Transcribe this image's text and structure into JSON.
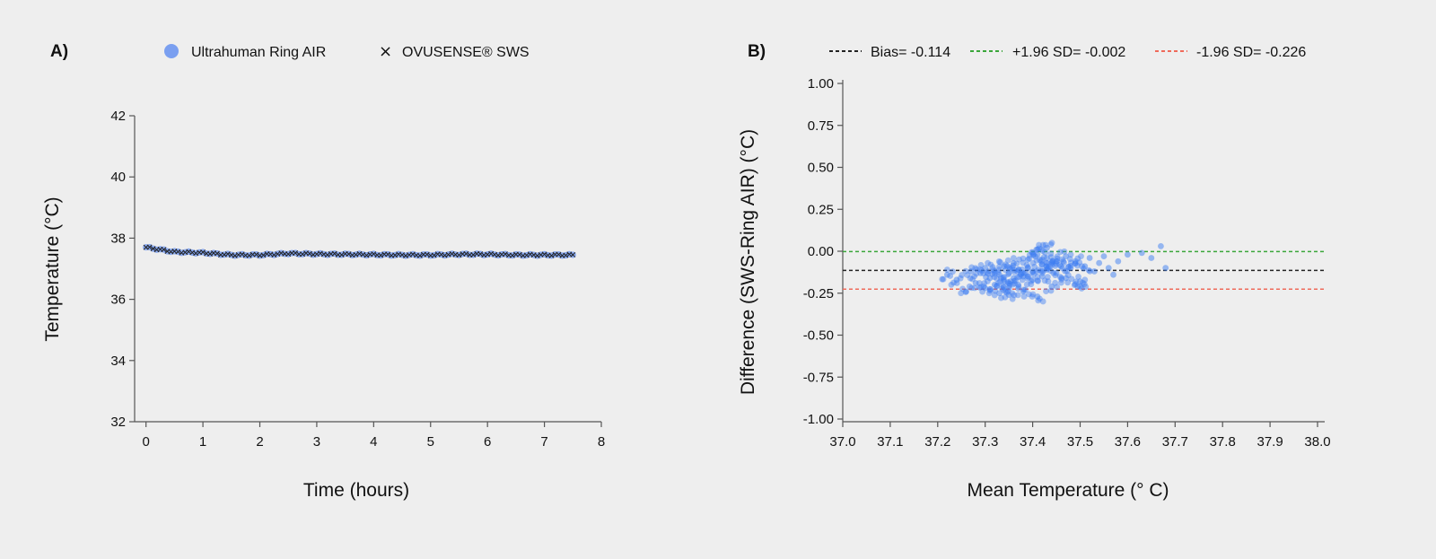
{
  "chart_data": [
    {
      "panel_label": "A)",
      "type": "line",
      "xlabel": "Time (hours)",
      "ylabel": "Temperature (°C)",
      "xlim": [
        -0.2,
        8
      ],
      "ylim": [
        32,
        42
      ],
      "xticks": [
        "0",
        "1",
        "2",
        "3",
        "4",
        "5",
        "6",
        "7",
        "8"
      ],
      "yticks": [
        "32",
        "34",
        "36",
        "38",
        "40",
        "42"
      ],
      "legend_position": "top",
      "series": [
        {
          "name": "Ultrahuman Ring AIR",
          "marker": "circle",
          "color": "#7a9ff0",
          "x": [
            0,
            0.5,
            1,
            1.5,
            2,
            2.5,
            3,
            3.5,
            4,
            4.5,
            5,
            5.5,
            6,
            6.5,
            7,
            7.5
          ],
          "y": [
            37.7,
            37.55,
            37.52,
            37.45,
            37.45,
            37.5,
            37.48,
            37.47,
            37.46,
            37.45,
            37.45,
            37.47,
            37.47,
            37.45,
            37.45,
            37.45
          ]
        },
        {
          "name": "OVUSENSE® SWS",
          "marker": "x",
          "color": "#222222",
          "x": [
            0,
            0.5,
            1,
            1.5,
            2,
            2.5,
            3,
            3.5,
            4,
            4.5,
            5,
            5.5,
            6,
            6.5,
            7,
            7.5
          ],
          "y": [
            37.7,
            37.55,
            37.52,
            37.45,
            37.45,
            37.5,
            37.48,
            37.47,
            37.46,
            37.45,
            37.45,
            37.47,
            37.47,
            37.45,
            37.45,
            37.45
          ]
        }
      ]
    },
    {
      "panel_label": "B)",
      "type": "scatter",
      "xlabel": "Mean Temperature (° C)",
      "ylabel": "Difference (SWS-Ring AIR)  (°C)",
      "xlim": [
        37.0,
        38.0
      ],
      "ylim": [
        -1.0,
        1.0
      ],
      "xticks": [
        "37.0",
        "37.1",
        "37.2",
        "37.3",
        "37.4",
        "37.5",
        "37.6",
        "37.7",
        "37.8",
        "37.9",
        "38.0"
      ],
      "yticks": [
        "-1.00",
        "-0.75",
        "-0.50",
        "-0.25",
        "0.00",
        "0.25",
        "0.50",
        "0.75",
        "1.00"
      ],
      "legend_position": "top",
      "point_color": "#3b7df2",
      "lines": [
        {
          "label": "Bias= -0.114",
          "y": -0.114,
          "color": "#222222"
        },
        {
          "label": "+1.96 SD= -0.002",
          "y": -0.002,
          "color": "#3aa63a"
        },
        {
          "label": "-1.96 SD= -0.226",
          "y": -0.226,
          "color": "#ef6a5a"
        }
      ],
      "points": [
        [
          37.22,
          -0.14
        ],
        [
          37.24,
          -0.17
        ],
        [
          37.26,
          -0.24
        ],
        [
          37.27,
          -0.12
        ],
        [
          37.28,
          -0.19
        ],
        [
          37.29,
          -0.13
        ],
        [
          37.3,
          -0.22
        ],
        [
          37.3,
          -0.1
        ],
        [
          37.31,
          -0.16
        ],
        [
          37.32,
          -0.2
        ],
        [
          37.32,
          -0.12
        ],
        [
          37.33,
          -0.25
        ],
        [
          37.33,
          -0.14
        ],
        [
          37.34,
          -0.09
        ],
        [
          37.34,
          -0.18
        ],
        [
          37.35,
          -0.22
        ],
        [
          37.35,
          -0.13
        ],
        [
          37.36,
          -0.16
        ],
        [
          37.36,
          -0.07
        ],
        [
          37.37,
          -0.2
        ],
        [
          37.37,
          -0.11
        ],
        [
          37.38,
          -0.15
        ],
        [
          37.38,
          -0.24
        ],
        [
          37.39,
          -0.1
        ],
        [
          37.39,
          -0.05
        ],
        [
          37.4,
          -0.17
        ],
        [
          37.4,
          -0.12
        ],
        [
          37.41,
          -0.02
        ],
        [
          37.41,
          -0.27
        ],
        [
          37.42,
          -0.08
        ],
        [
          37.42,
          -0.15
        ],
        [
          37.43,
          -0.04
        ],
        [
          37.43,
          -0.11
        ],
        [
          37.44,
          -0.07
        ],
        [
          37.44,
          -0.21
        ],
        [
          37.45,
          -0.06
        ],
        [
          37.45,
          -0.13
        ],
        [
          37.46,
          -0.09
        ],
        [
          37.47,
          -0.03
        ],
        [
          37.47,
          -0.16
        ],
        [
          37.48,
          -0.1
        ],
        [
          37.49,
          -0.06
        ],
        [
          37.5,
          -0.18
        ],
        [
          37.5,
          -0.21
        ],
        [
          37.51,
          -0.09
        ],
        [
          37.52,
          -0.04
        ],
        [
          37.53,
          -0.12
        ],
        [
          37.54,
          -0.07
        ],
        [
          37.55,
          -0.03
        ],
        [
          37.56,
          -0.1
        ],
        [
          37.58,
          -0.06
        ],
        [
          37.6,
          -0.02
        ],
        [
          37.63,
          -0.01
        ],
        [
          37.65,
          -0.04
        ],
        [
          37.67,
          0.03
        ],
        [
          37.68,
          -0.1
        ],
        [
          37.41,
          0.01
        ],
        [
          37.43,
          0.02
        ],
        [
          37.57,
          -0.14
        ],
        [
          37.35,
          -0.26
        ]
      ]
    }
  ]
}
